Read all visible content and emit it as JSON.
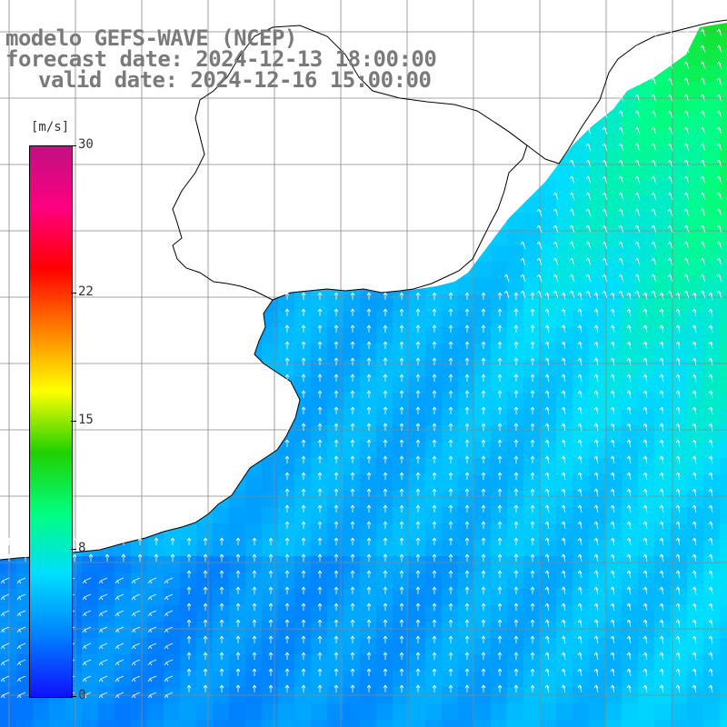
{
  "titles": {
    "line1": "modelo GEFS-WAVE (NCEP)",
    "line2": "forecast date: 2024-12-13 18:00:00",
    "line3": "valid date: 2024-12-16 15:00:00"
  },
  "colorbar": {
    "unit": "[m/s]",
    "min": 0,
    "max": 30,
    "ticks": [
      {
        "value": 30,
        "label": "30"
      },
      {
        "value": 22,
        "label": "22"
      },
      {
        "value": 15,
        "label": "15"
      },
      {
        "value": 8,
        "label": "8"
      },
      {
        "value": 0,
        "label": "0"
      }
    ],
    "colors": [
      "#1010ff",
      "#0080ff",
      "#00ddff",
      "#00ff80",
      "#20d000",
      "#ffff00",
      "#ff8000",
      "#ff0000",
      "#ff0080",
      "#c01080"
    ]
  },
  "map": {
    "land_color": "#ffffff",
    "grid_color": "#888888",
    "arrow_color": "#ffffff",
    "coast_color": "#000000"
  }
}
